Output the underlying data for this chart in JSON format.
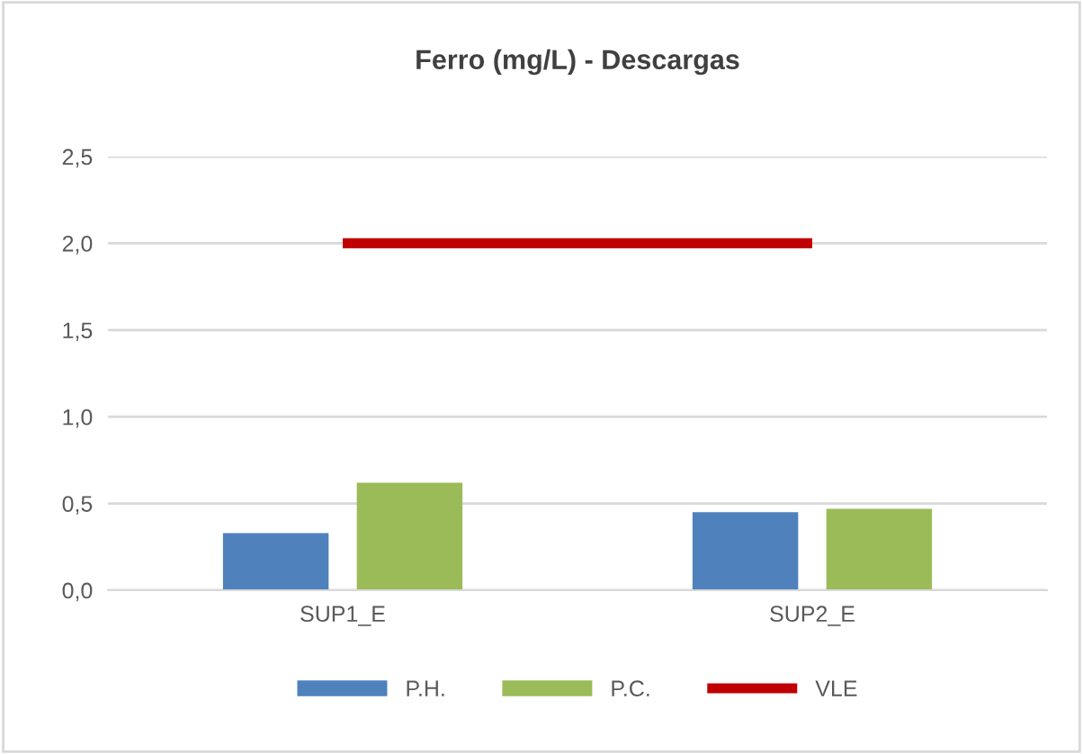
{
  "chart_data": {
    "type": "bar",
    "title": "Ferro (mg/L) - Descargas",
    "categories": [
      "SUP1_E",
      "SUP2_E"
    ],
    "series": [
      {
        "name": "P.H.",
        "color": "#4f81bd",
        "values": [
          0.33,
          0.45
        ]
      },
      {
        "name": "P.C.",
        "color": "#9bbb59",
        "values": [
          0.62,
          0.47
        ]
      },
      {
        "name": "VLE",
        "type": "line",
        "color": "#c00000",
        "values": [
          2.0,
          2.0
        ]
      }
    ],
    "ylim": [
      0,
      2.5
    ],
    "yticks": [
      {
        "value": 0,
        "label": "0,0"
      },
      {
        "value": 0.5,
        "label": "0,5"
      },
      {
        "value": 1.0,
        "label": "1,0"
      },
      {
        "value": 1.5,
        "label": "1,5"
      },
      {
        "value": 2.0,
        "label": "2,0"
      },
      {
        "value": 2.5,
        "label": "2,5"
      }
    ],
    "grid": "y",
    "legend": "bottom",
    "marker": "none",
    "line_style": "solid"
  }
}
